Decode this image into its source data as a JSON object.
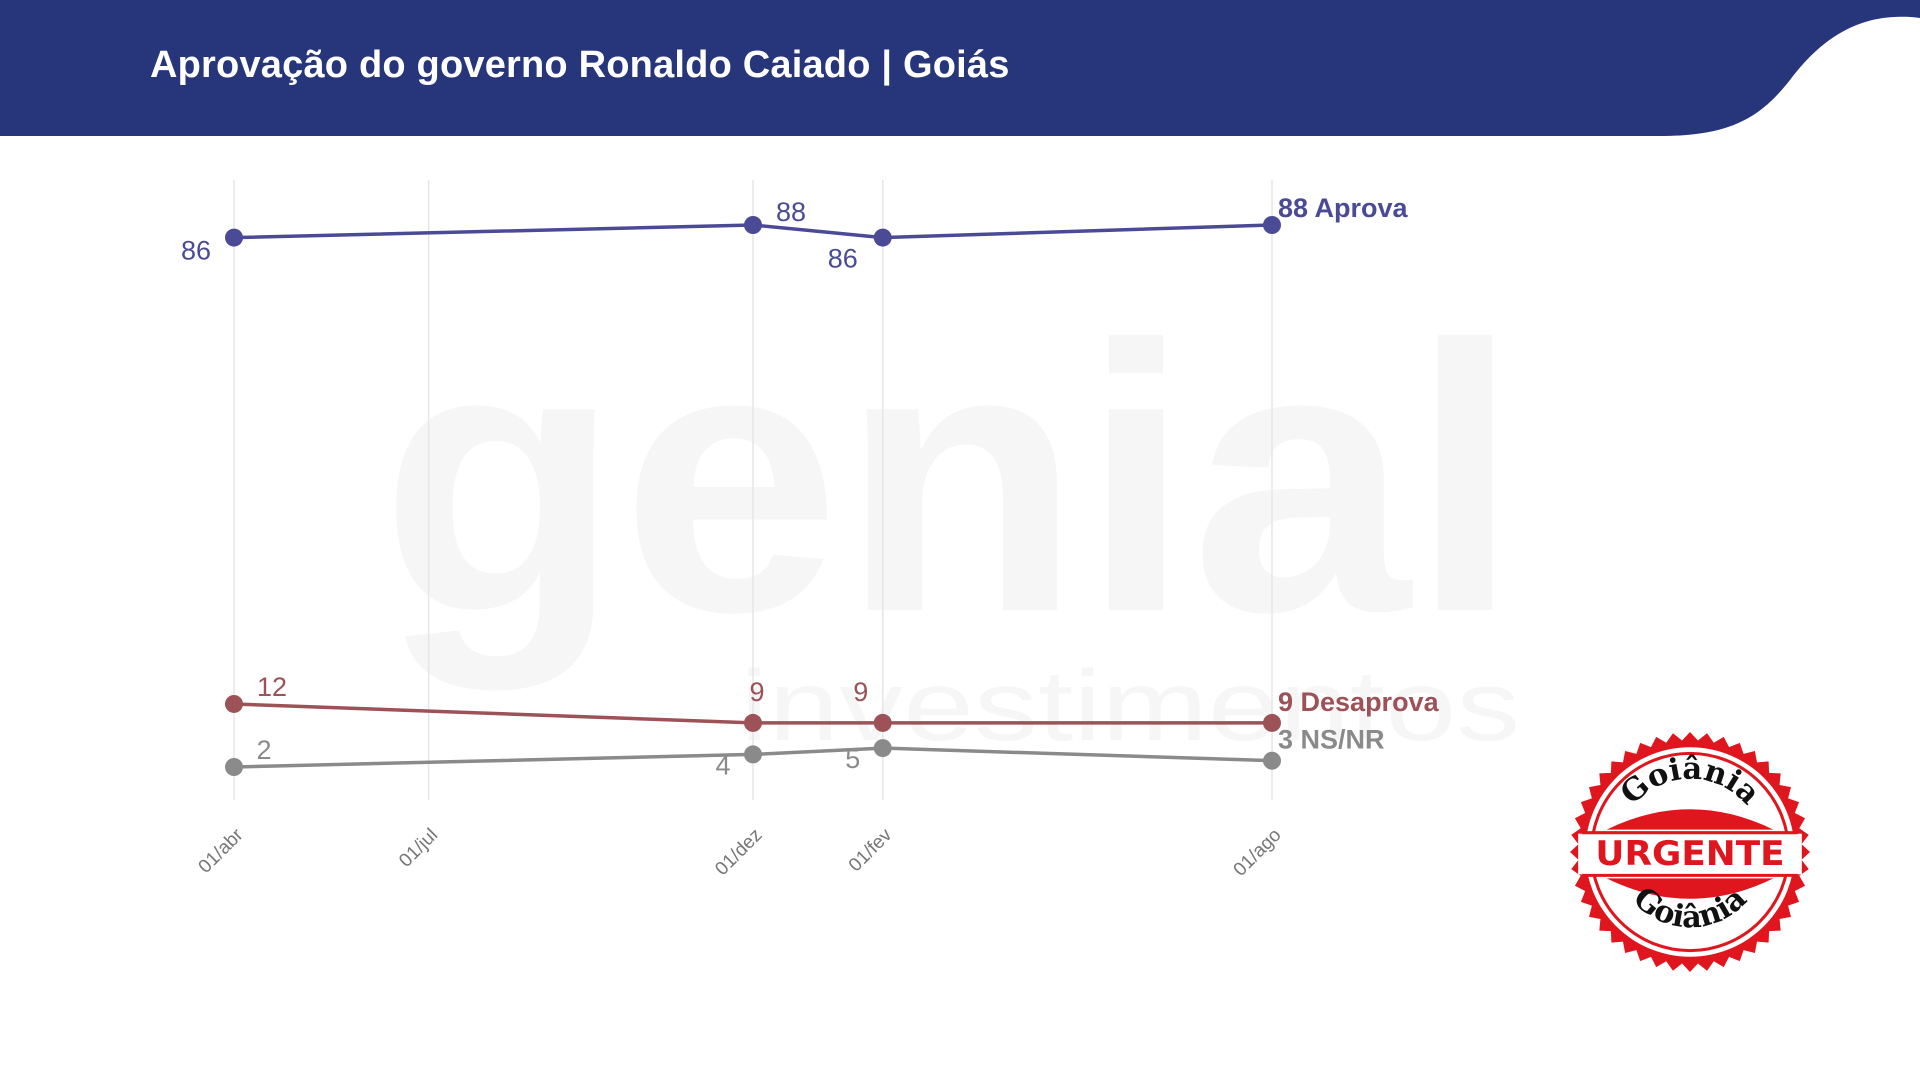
{
  "header": {
    "title": "Aprovação do governo Ronaldo Caiado | Goiás",
    "background_color": "#27367a"
  },
  "watermark": {
    "brand": "genial",
    "tagline": "investimentos"
  },
  "stamp": {
    "top_text": "Goiânia",
    "middle_text": "URGENTE",
    "bottom_text": "Goiânia",
    "color": "#e0161f"
  },
  "chart_data": {
    "type": "line",
    "title": "Aprovação do governo Ronaldo Caiado | Goiás",
    "xlabel": "",
    "ylabel": "",
    "ylim": [
      2,
      88
    ],
    "grid": "vertical",
    "legend": "end-of-line labels",
    "x_ticks": [
      "01/abr",
      "01/jul",
      "01/dez",
      "01/fev",
      "01/ago"
    ],
    "series": [
      {
        "name": "Aprova",
        "color": "#4b4a96",
        "points": [
          {
            "x": "01/abr",
            "y": 86
          },
          {
            "x": "01/dez",
            "y": 88
          },
          {
            "x": "01/fev",
            "y": 86
          },
          {
            "x": "01/ago",
            "y": 88
          }
        ]
      },
      {
        "name": "Desaprova",
        "color": "#9c5257",
        "points": [
          {
            "x": "01/abr",
            "y": 12
          },
          {
            "x": "01/dez",
            "y": 9
          },
          {
            "x": "01/fev",
            "y": 9
          },
          {
            "x": "01/ago",
            "y": 9
          }
        ]
      },
      {
        "name": "NS/NR",
        "color": "#8a8a8a",
        "points": [
          {
            "x": "01/abr",
            "y": 2
          },
          {
            "x": "01/dez",
            "y": 4
          },
          {
            "x": "01/fev",
            "y": 5
          },
          {
            "x": "01/ago",
            "y": 3
          }
        ]
      }
    ]
  }
}
